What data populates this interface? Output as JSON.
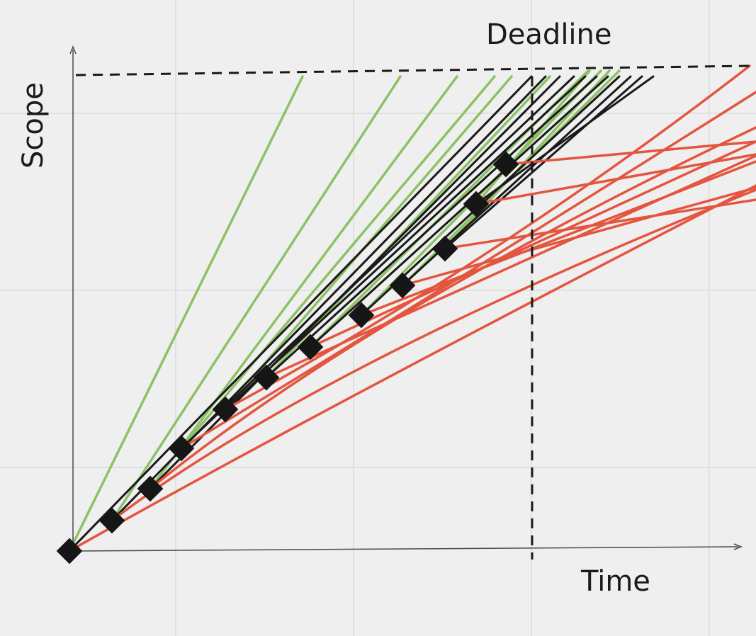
{
  "labels": {
    "y_axis": "Scope",
    "x_axis": "Time",
    "deadline": "Deadline"
  },
  "colors": {
    "background": "#efefef",
    "grid": "#e0e0e0",
    "axis": "#4a4a4a",
    "dashed": "#1a1a1a",
    "marker": "#161616",
    "on_track": "#8cc265",
    "forecast": "#1a1a1a",
    "late": "#e4553f"
  }
}
